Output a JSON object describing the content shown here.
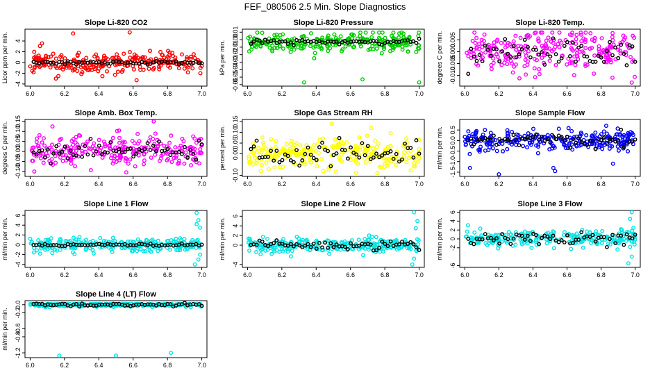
{
  "title": "FEF_080506  2.5 Min. Slope Diagnostics",
  "chart_data": [
    {
      "type": "scatter",
      "title": "Slope Li-820 CO2",
      "ylabel": "Licor ppm per min.",
      "xlim": [
        5.97,
        7.03
      ],
      "ylim": [
        -4.4,
        6.2
      ],
      "xticks": [
        "6.0",
        "6.2",
        "6.4",
        "6.6",
        "6.8",
        "7.0"
      ],
      "yticks": [
        "-4",
        "-2",
        "0",
        "2",
        "4"
      ],
      "color": "#ff0000",
      "sd": 1.0,
      "base": 0,
      "blackSd": 0.15,
      "outliers": [
        [
          6.25,
          5.4
        ],
        [
          6.58,
          5.6
        ],
        [
          6.62,
          -3.3
        ],
        [
          6.15,
          -3.0
        ]
      ],
      "seed": 11,
      "hasFill": true
    },
    {
      "type": "scatter",
      "title": "Slope Li-820 Pressure",
      "ylabel": "kPa per min.",
      "xlim": [
        5.97,
        7.03
      ],
      "ylim": [
        -0.062,
        0.014
      ],
      "xticks": [
        "6.0",
        "6.2",
        "6.4",
        "6.6",
        "6.8",
        "7.0"
      ],
      "yticks": [
        "-0.06",
        "-0.05",
        "-0.04",
        "-0.03",
        "-0.02",
        "-0.01",
        "0.00",
        "0.01"
      ],
      "color": "#00cc00",
      "sd": 0.006,
      "base": -0.003,
      "blackSd": 0.002,
      "outliers": [
        [
          6.33,
          -0.057
        ],
        [
          6.67,
          -0.053
        ],
        [
          7.0,
          -0.057
        ]
      ],
      "seed": 23,
      "hasFill": false
    },
    {
      "type": "scatter",
      "title": "Slope Li-820 Temp.",
      "ylabel": "degrees C per min.",
      "xlim": [
        5.97,
        7.03
      ],
      "ylim": [
        -0.0145,
        0.0095
      ],
      "xticks": [
        "6.0",
        "6.2",
        "6.4",
        "6.6",
        "6.8",
        "7.0"
      ],
      "yticks": [
        "-0.010",
        "-0.005",
        "0.000",
        "0.005"
      ],
      "color": "#ff00ff",
      "sd": 0.0045,
      "base": 0,
      "blackSd": 0.003,
      "outliers": [
        [
          6.98,
          -0.013
        ]
      ],
      "seed": 37,
      "hasFill": false
    },
    {
      "type": "scatter",
      "title": "Slope Amb. Box Temp.",
      "ylabel": "degrees C per min.",
      "xlim": [
        5.97,
        7.03
      ],
      "ylim": [
        -0.125,
        0.16
      ],
      "xticks": [
        "6.0",
        "6.2",
        "6.4",
        "6.6",
        "6.8",
        "7.0"
      ],
      "yticks": [
        "-0.10",
        "-0.05",
        "0.00",
        "0.05",
        "0.10",
        "0.15"
      ],
      "color": "#ff00ff",
      "sd": 0.04,
      "base": 0,
      "blackSd": 0.025,
      "outliers": [
        [
          6.72,
          0.15
        ],
        [
          6.56,
          -0.105
        ],
        [
          6.13,
          0.125
        ]
      ],
      "seed": 41,
      "hasFill": false
    },
    {
      "type": "scatter",
      "title": "Slope Gas Stream RH",
      "ylabel": "percent per min.",
      "xlim": [
        5.97,
        7.03
      ],
      "ylim": [
        -0.105,
        0.16
      ],
      "xticks": [
        "6.0",
        "6.2",
        "6.4",
        "6.6",
        "6.8",
        "7.0"
      ],
      "yticks": [
        "-0.10",
        "0.00",
        "0.05",
        "0.10",
        "0.15"
      ],
      "color": "#ffff00",
      "sd": 0.035,
      "base": 0,
      "blackSd": 0.03,
      "outliers": [
        [
          6.49,
          0.14
        ],
        [
          6.72,
          0.12
        ]
      ],
      "seed": 53,
      "hasFill": false
    },
    {
      "type": "scatter",
      "title": "Slope Sample Flow",
      "ylabel": "ml/min per min.",
      "xlim": [
        5.97,
        7.03
      ],
      "ylim": [
        -1.7,
        1.0
      ],
      "xticks": [
        "6.0",
        "6.2",
        "6.4",
        "6.6",
        "6.8",
        "7.0"
      ],
      "yticks": [
        "-1.5",
        "-1.0",
        "-0.5",
        "0.0",
        "0.5"
      ],
      "color": "#0000ff",
      "sd": 0.22,
      "base": 0,
      "blackSd": 0.15,
      "outliers": [
        [
          6.03,
          -1.3
        ],
        [
          6.2,
          -1.6
        ],
        [
          6.52,
          -1.3
        ],
        [
          6.53,
          -1.45
        ],
        [
          6.83,
          0.7
        ],
        [
          6.87,
          -1.1
        ],
        [
          6.43,
          -0.6
        ]
      ],
      "seed": 67,
      "hasFill": false
    },
    {
      "type": "scatter",
      "title": "Slope Line 1 Flow",
      "ylabel": "ml/min per min.",
      "xlim": [
        5.97,
        7.03
      ],
      "ylim": [
        -4.6,
        7.0
      ],
      "xticks": [
        "6.0",
        "6.2",
        "6.4",
        "6.6",
        "6.8",
        "7.0"
      ],
      "yticks": [
        "-4",
        "-2",
        "0",
        "2",
        "4",
        "6"
      ],
      "color": "#00e5e5",
      "sd": 0.7,
      "base": 0,
      "blackSd": 0.12,
      "outliers": [
        [
          6.97,
          6.5
        ],
        [
          6.98,
          5.0
        ],
        [
          6.99,
          3.5
        ],
        [
          6.96,
          -4.0
        ],
        [
          6.98,
          -3.0
        ],
        [
          6.99,
          -2.0
        ],
        [
          6.97,
          4.2
        ]
      ],
      "seed": 71,
      "hasFill": false
    },
    {
      "type": "scatter",
      "title": "Slope Line 2 Flow",
      "ylabel": "ml/min per min.",
      "xlim": [
        5.97,
        7.03
      ],
      "ylim": [
        -4.6,
        7.2
      ],
      "xticks": [
        "6.0",
        "6.2",
        "6.4",
        "6.6",
        "6.8",
        "7.0"
      ],
      "yticks": [
        "-4",
        "0",
        "2",
        "4",
        "6"
      ],
      "color": "#00e5e5",
      "sd": 0.7,
      "base": 0,
      "blackSd": 0.5,
      "outliers": [
        [
          6.97,
          6.8
        ],
        [
          6.99,
          5.0
        ],
        [
          6.96,
          -4.0
        ],
        [
          6.97,
          -2.8
        ],
        [
          6.98,
          3.5
        ]
      ],
      "seed": 83,
      "hasFill": false
    },
    {
      "type": "scatter",
      "title": "Slope Line 3 Flow",
      "ylabel": "ml/min per min.",
      "xlim": [
        5.97,
        7.03
      ],
      "ylim": [
        -6.4,
        6.4
      ],
      "xticks": [
        "6.0",
        "6.2",
        "6.4",
        "6.6",
        "6.8",
        "7.0"
      ],
      "yticks": [
        "-6",
        "-2",
        "0",
        "2",
        "4",
        "6"
      ],
      "color": "#00e5e5",
      "sd": 1.0,
      "base": 0,
      "blackSd": 0.8,
      "outliers": [
        [
          6.98,
          6.0
        ],
        [
          6.97,
          4.5
        ],
        [
          6.96,
          -5.5
        ],
        [
          6.98,
          -4.0
        ],
        [
          6.99,
          2.5
        ]
      ],
      "seed": 97,
      "hasFill": false
    },
    {
      "type": "scatter",
      "title": "Slope Line 4 (LT) Flow",
      "ylabel": "ml/min per min.",
      "xlim": [
        5.97,
        7.03
      ],
      "ylim": [
        -1.32,
        0.1
      ],
      "xticks": [
        "6.0",
        "6.2",
        "6.4",
        "6.6",
        "6.8",
        "7.0"
      ],
      "yticks": [
        "-1.2",
        "-0.8",
        "-0.6",
        "-0.2",
        "0.0"
      ],
      "color": "#00e5e5",
      "sd": 0.025,
      "base": 0,
      "blackSd": 0.02,
      "outliers": [
        [
          6.17,
          -1.27
        ],
        [
          6.5,
          -1.27
        ],
        [
          6.82,
          -1.2
        ]
      ],
      "seed": 101,
      "hasFill": false
    }
  ]
}
